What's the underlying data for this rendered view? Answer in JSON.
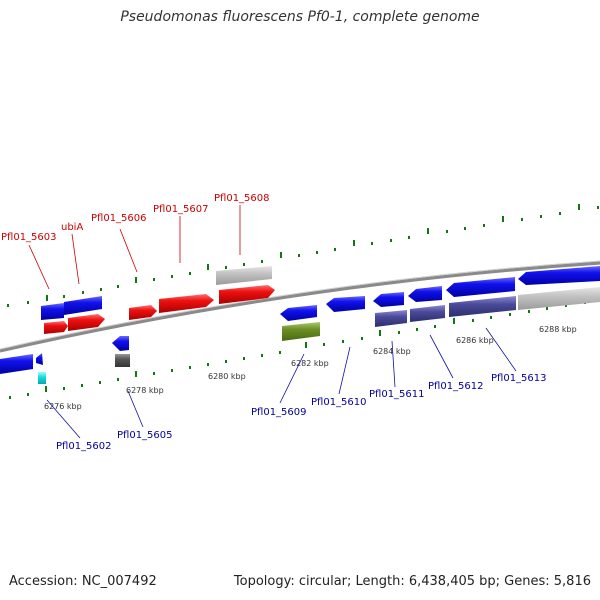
{
  "title": "Pseudomonas fluorescens Pf0-1, complete genome",
  "footer": {
    "accession": "Accession: NC_007492",
    "summary": "Topology: circular; Length: 6,438,405 bp; Genes: 5,816"
  },
  "colors": {
    "forward_gene": "#ee1111",
    "reverse_gene": "#1111ee",
    "forward_label": "#cc0000",
    "reverse_label": "#000099",
    "backbone": "#888888",
    "tick": "#117711",
    "muted_gene": "#bbbbbb",
    "purple_gene": "#4a4a99",
    "olive_gene": "#6b8e23",
    "cyan_gene": "#22dddd",
    "dark_gene": "#555555"
  },
  "scale_labels": [
    "6276 kbp",
    "6278 kbp",
    "6280 kbp",
    "6282 kbp",
    "6284 kbp",
    "6286 kbp",
    "6288 kbp"
  ],
  "forward_labels": [
    "Pfl01_5603",
    "ubiA",
    "Pfl01_5606",
    "Pfl01_5607",
    "Pfl01_5608"
  ],
  "reverse_labels": [
    "Pfl01_5602",
    "Pfl01_5605",
    "Pfl01_5609",
    "Pfl01_5610",
    "Pfl01_5611",
    "Pfl01_5612",
    "Pfl01_5613"
  ]
}
